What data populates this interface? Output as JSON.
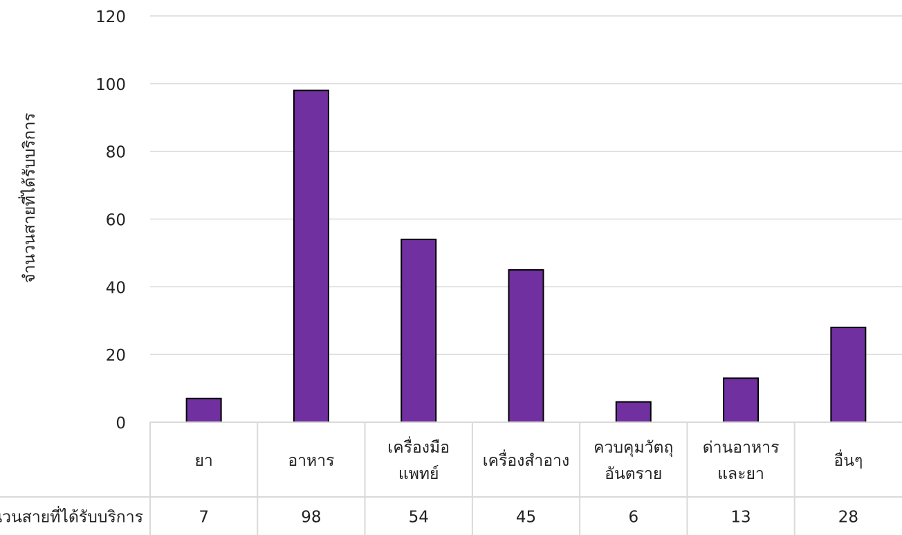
{
  "chart_data": {
    "type": "bar",
    "ylabel": "จำนวนสายที่ได้รับบริการ",
    "ylim": [
      0,
      120
    ],
    "yticks": [
      0,
      20,
      40,
      60,
      80,
      100,
      120
    ],
    "grid": true,
    "categories": [
      [
        "ยา"
      ],
      [
        "อาหาร"
      ],
      [
        "เครื่องมือ",
        "แพทย์"
      ],
      [
        "เครื่องสำอาง"
      ],
      [
        "ควบคุมวัตถุ",
        "อันตราย"
      ],
      [
        "ด่านอาหาร",
        "และยา"
      ],
      [
        "อื่นๆ"
      ]
    ],
    "series": [
      {
        "name": "จำนวนสายที่ได้รับบริการ",
        "values": [
          7,
          98,
          54,
          45,
          6,
          13,
          28
        ]
      }
    ],
    "bar_color": "#7030a0",
    "grid_color": "#d9d9d9"
  }
}
